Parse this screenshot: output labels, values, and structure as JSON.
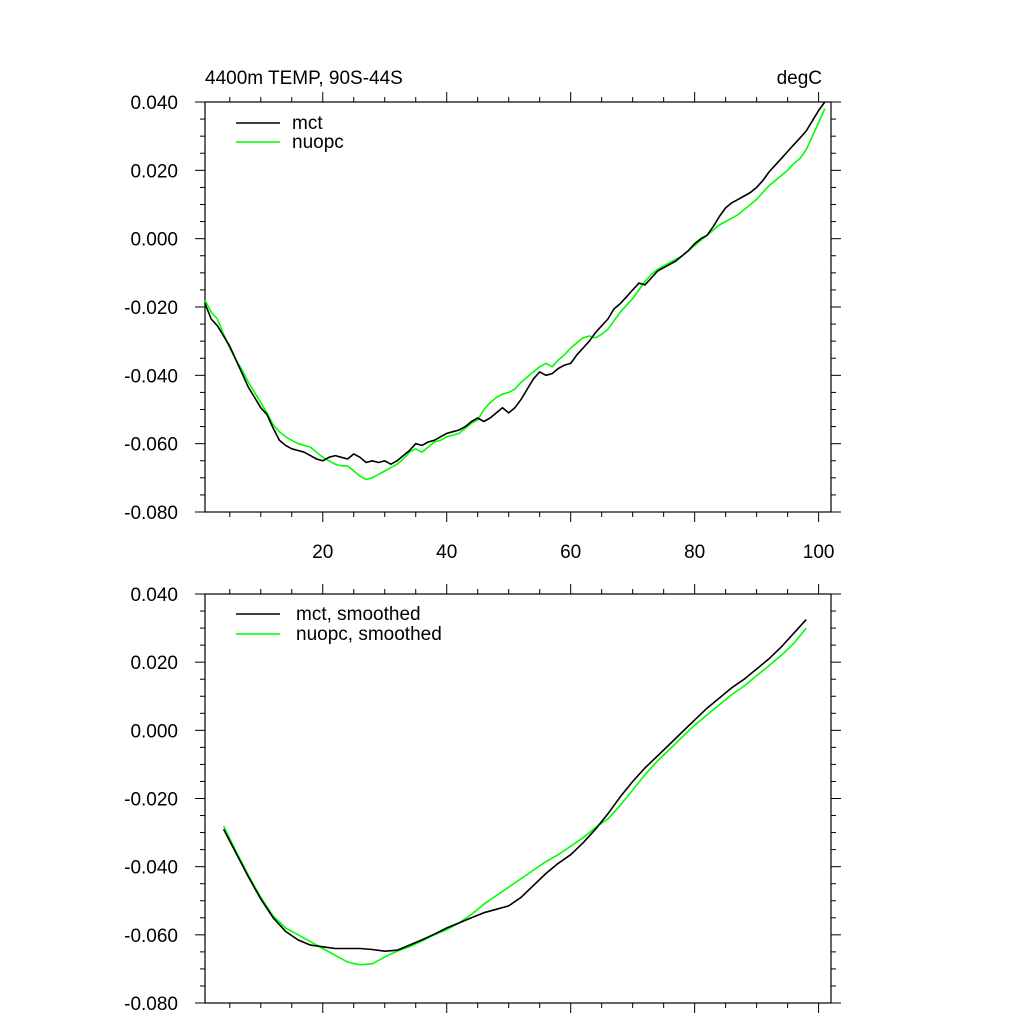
{
  "chart_data": [
    {
      "type": "line",
      "title_left": "4400m TEMP, 90S-44S",
      "title_right": "degC",
      "xlim": [
        1,
        102
      ],
      "ylim": [
        -0.08,
        0.04
      ],
      "xticks": [
        20,
        40,
        60,
        80,
        100
      ],
      "xtick_labels": [
        "20",
        "40",
        "60",
        "80",
        "100"
      ],
      "yticks": [
        0.04,
        0.02,
        0.0,
        -0.02,
        -0.04,
        -0.06,
        -0.08
      ],
      "ytick_labels": [
        "0.040",
        "0.020",
        "0.000",
        "-0.020",
        "-0.040",
        "-0.060",
        "-0.080"
      ],
      "legend": "top-left",
      "series": [
        {
          "name": "mct",
          "color": "#000000",
          "x": [
            1,
            2,
            3,
            4,
            5,
            6,
            7,
            8,
            9,
            10,
            11,
            12,
            13,
            14,
            15,
            16,
            17,
            18,
            19,
            20,
            21,
            22,
            23,
            24,
            25,
            26,
            27,
            28,
            29,
            30,
            31,
            32,
            33,
            34,
            35,
            36,
            37,
            38,
            39,
            40,
            41,
            42,
            43,
            44,
            45,
            46,
            47,
            48,
            49,
            50,
            51,
            52,
            53,
            54,
            55,
            56,
            57,
            58,
            59,
            60,
            61,
            62,
            63,
            64,
            65,
            66,
            67,
            68,
            69,
            70,
            71,
            72,
            73,
            74,
            75,
            76,
            77,
            78,
            79,
            80,
            81,
            82,
            83,
            84,
            85,
            86,
            87,
            88,
            89,
            90,
            91,
            92,
            93,
            94,
            95,
            96,
            97,
            98,
            99,
            100,
            101
          ],
          "y": [
            -0.019,
            -0.0235,
            -0.0255,
            -0.0285,
            -0.0315,
            -0.0355,
            -0.0395,
            -0.0435,
            -0.0465,
            -0.0495,
            -0.0515,
            -0.0555,
            -0.059,
            -0.0605,
            -0.0615,
            -0.062,
            -0.0625,
            -0.0635,
            -0.0645,
            -0.065,
            -0.064,
            -0.0635,
            -0.064,
            -0.0645,
            -0.063,
            -0.064,
            -0.0655,
            -0.065,
            -0.0655,
            -0.065,
            -0.066,
            -0.065,
            -0.0635,
            -0.062,
            -0.06,
            -0.0605,
            -0.0595,
            -0.059,
            -0.058,
            -0.057,
            -0.0565,
            -0.056,
            -0.055,
            -0.0535,
            -0.0525,
            -0.0535,
            -0.0525,
            -0.051,
            -0.0495,
            -0.051,
            -0.0495,
            -0.047,
            -0.044,
            -0.041,
            -0.039,
            -0.04,
            -0.0395,
            -0.038,
            -0.037,
            -0.0365,
            -0.034,
            -0.032,
            -0.03,
            -0.0275,
            -0.0255,
            -0.0235,
            -0.0205,
            -0.019,
            -0.017,
            -0.015,
            -0.013,
            -0.0135,
            -0.0115,
            -0.0095,
            -0.0085,
            -0.0075,
            -0.0065,
            -0.005,
            -0.0035,
            -0.0015,
            0.0,
            0.001,
            0.0035,
            0.0065,
            0.009,
            0.0105,
            0.0115,
            0.0125,
            0.0135,
            0.015,
            0.017,
            0.0195,
            0.0215,
            0.0235,
            0.0255,
            0.0275,
            0.0295,
            0.0315,
            0.0345,
            0.0375,
            0.04
          ]
        },
        {
          "name": "nuopc",
          "color": "#00ff00",
          "x": [
            1,
            2,
            3,
            4,
            5,
            6,
            7,
            8,
            9,
            10,
            11,
            12,
            13,
            14,
            15,
            16,
            17,
            18,
            19,
            20,
            21,
            22,
            23,
            24,
            25,
            26,
            27,
            28,
            29,
            30,
            31,
            32,
            33,
            34,
            35,
            36,
            37,
            38,
            39,
            40,
            41,
            42,
            43,
            44,
            45,
            46,
            47,
            48,
            49,
            50,
            51,
            52,
            53,
            54,
            55,
            56,
            57,
            58,
            59,
            60,
            61,
            62,
            63,
            64,
            65,
            66,
            67,
            68,
            69,
            70,
            71,
            72,
            73,
            74,
            75,
            76,
            77,
            78,
            79,
            80,
            81,
            82,
            83,
            84,
            85,
            86,
            87,
            88,
            89,
            90,
            91,
            92,
            93,
            94,
            95,
            96,
            97,
            98,
            99,
            100,
            101
          ],
          "y": [
            -0.018,
            -0.0215,
            -0.0235,
            -0.028,
            -0.032,
            -0.0355,
            -0.0385,
            -0.042,
            -0.045,
            -0.048,
            -0.051,
            -0.0545,
            -0.0565,
            -0.058,
            -0.059,
            -0.06,
            -0.0605,
            -0.061,
            -0.0625,
            -0.064,
            -0.065,
            -0.066,
            -0.0665,
            -0.0665,
            -0.068,
            -0.0695,
            -0.0705,
            -0.07,
            -0.069,
            -0.068,
            -0.067,
            -0.066,
            -0.0645,
            -0.0625,
            -0.0615,
            -0.0625,
            -0.061,
            -0.0595,
            -0.059,
            -0.058,
            -0.0575,
            -0.057,
            -0.0555,
            -0.054,
            -0.053,
            -0.05,
            -0.048,
            -0.0465,
            -0.0455,
            -0.045,
            -0.044,
            -0.042,
            -0.0405,
            -0.039,
            -0.0375,
            -0.0365,
            -0.0375,
            -0.0355,
            -0.034,
            -0.032,
            -0.0305,
            -0.029,
            -0.0285,
            -0.029,
            -0.028,
            -0.0265,
            -0.024,
            -0.0215,
            -0.0195,
            -0.0175,
            -0.015,
            -0.0125,
            -0.0105,
            -0.009,
            -0.008,
            -0.007,
            -0.006,
            -0.005,
            -0.0035,
            -0.002,
            -0.0005,
            0.001,
            0.0025,
            0.004,
            0.005,
            0.006,
            0.007,
            0.0085,
            0.01,
            0.0115,
            0.0135,
            0.0155,
            0.017,
            0.0185,
            0.02,
            0.022,
            0.0235,
            0.026,
            0.03,
            0.034,
            0.038
          ]
        }
      ]
    },
    {
      "type": "line",
      "xlim": [
        1,
        102
      ],
      "ylim": [
        -0.08,
        0.04
      ],
      "xticks": [
        20,
        40,
        60,
        80,
        100
      ],
      "yticks": [
        0.04,
        0.02,
        0.0,
        -0.02,
        -0.04,
        -0.06,
        -0.08
      ],
      "ytick_labels": [
        "0.040",
        "0.020",
        "0.000",
        "-0.020",
        "-0.040",
        "-0.060",
        "-0.080"
      ],
      "legend": "top-left",
      "series": [
        {
          "name": "mct, smoothed",
          "color": "#000000",
          "x": [
            4,
            6,
            8,
            10,
            12,
            14,
            16,
            18,
            20,
            22,
            24,
            26,
            28,
            30,
            32,
            34,
            36,
            38,
            40,
            42,
            44,
            46,
            48,
            50,
            52,
            54,
            56,
            58,
            60,
            62,
            64,
            66,
            68,
            70,
            72,
            74,
            76,
            78,
            80,
            82,
            84,
            86,
            88,
            90,
            92,
            94,
            96,
            98
          ],
          "y": [
            -0.029,
            -0.036,
            -0.043,
            -0.0495,
            -0.055,
            -0.059,
            -0.0615,
            -0.063,
            -0.0635,
            -0.064,
            -0.064,
            -0.064,
            -0.0643,
            -0.0648,
            -0.0645,
            -0.063,
            -0.0615,
            -0.0598,
            -0.058,
            -0.0565,
            -0.055,
            -0.0535,
            -0.0525,
            -0.0515,
            -0.049,
            -0.0455,
            -0.042,
            -0.039,
            -0.0365,
            -0.033,
            -0.029,
            -0.0245,
            -0.0195,
            -0.015,
            -0.011,
            -0.0075,
            -0.004,
            -0.0005,
            0.003,
            0.0065,
            0.0095,
            0.0125,
            0.015,
            0.018,
            0.021,
            0.0245,
            0.0285,
            0.0325
          ]
        },
        {
          "name": "nuopc, smoothed",
          "color": "#00ff00",
          "x": [
            4,
            6,
            8,
            10,
            12,
            14,
            16,
            18,
            20,
            22,
            24,
            26,
            28,
            30,
            32,
            34,
            36,
            38,
            40,
            42,
            44,
            46,
            48,
            50,
            52,
            54,
            56,
            58,
            60,
            62,
            64,
            66,
            68,
            70,
            72,
            74,
            76,
            78,
            80,
            82,
            84,
            86,
            88,
            90,
            92,
            94,
            96,
            98
          ],
          "y": [
            -0.028,
            -0.0355,
            -0.0425,
            -0.049,
            -0.0545,
            -0.058,
            -0.06,
            -0.062,
            -0.064,
            -0.066,
            -0.068,
            -0.0688,
            -0.0685,
            -0.0665,
            -0.0648,
            -0.0635,
            -0.0618,
            -0.06,
            -0.0585,
            -0.0565,
            -0.054,
            -0.051,
            -0.0485,
            -0.046,
            -0.0435,
            -0.041,
            -0.0385,
            -0.0365,
            -0.034,
            -0.0315,
            -0.0285,
            -0.026,
            -0.022,
            -0.0175,
            -0.013,
            -0.009,
            -0.0055,
            -0.002,
            0.0015,
            0.0045,
            0.0075,
            0.0105,
            0.013,
            0.016,
            0.019,
            0.022,
            0.0255,
            0.03
          ]
        }
      ]
    }
  ]
}
